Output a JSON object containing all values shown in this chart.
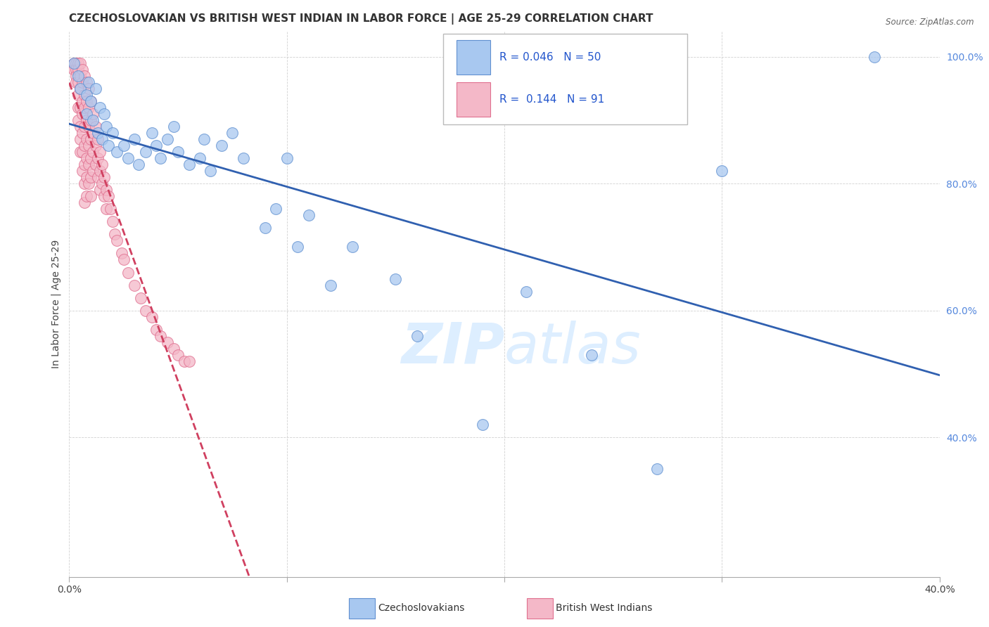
{
  "title": "CZECHOSLOVAKIAN VS BRITISH WEST INDIAN IN LABOR FORCE | AGE 25-29 CORRELATION CHART",
  "source": "Source: ZipAtlas.com",
  "ylabel": "In Labor Force | Age 25-29",
  "xlim": [
    0.0,
    0.4
  ],
  "ylim": [
    0.18,
    1.04
  ],
  "xticks": [
    0.0,
    0.1,
    0.2,
    0.3,
    0.4
  ],
  "xticklabels": [
    "0.0%",
    "",
    "",
    "",
    "40.0%"
  ],
  "yticks": [
    0.4,
    0.6,
    0.8,
    1.0
  ],
  "yticklabels": [
    "40.0%",
    "60.0%",
    "80.0%",
    "100.0%"
  ],
  "legend_blue_label": "Czechoslovakians",
  "legend_pink_label": "British West Indians",
  "R_blue": 0.046,
  "N_blue": 50,
  "R_pink": 0.144,
  "N_pink": 91,
  "blue_color": "#a8c8f0",
  "pink_color": "#f4b8c8",
  "blue_edge_color": "#6090d0",
  "pink_edge_color": "#e07090",
  "blue_line_color": "#3060b0",
  "pink_line_color": "#d04060",
  "watermark_color": "#ddeeff",
  "title_fontsize": 11,
  "axis_fontsize": 10,
  "tick_fontsize": 10,
  "blue_scatter": [
    [
      0.002,
      0.99
    ],
    [
      0.004,
      0.97
    ],
    [
      0.005,
      0.95
    ],
    [
      0.008,
      0.94
    ],
    [
      0.008,
      0.91
    ],
    [
      0.009,
      0.96
    ],
    [
      0.01,
      0.93
    ],
    [
      0.011,
      0.9
    ],
    [
      0.012,
      0.95
    ],
    [
      0.013,
      0.88
    ],
    [
      0.014,
      0.92
    ],
    [
      0.015,
      0.87
    ],
    [
      0.016,
      0.91
    ],
    [
      0.017,
      0.89
    ],
    [
      0.018,
      0.86
    ],
    [
      0.02,
      0.88
    ],
    [
      0.022,
      0.85
    ],
    [
      0.025,
      0.86
    ],
    [
      0.027,
      0.84
    ],
    [
      0.03,
      0.87
    ],
    [
      0.032,
      0.83
    ],
    [
      0.035,
      0.85
    ],
    [
      0.038,
      0.88
    ],
    [
      0.04,
      0.86
    ],
    [
      0.042,
      0.84
    ],
    [
      0.045,
      0.87
    ],
    [
      0.048,
      0.89
    ],
    [
      0.05,
      0.85
    ],
    [
      0.055,
      0.83
    ],
    [
      0.06,
      0.84
    ],
    [
      0.062,
      0.87
    ],
    [
      0.065,
      0.82
    ],
    [
      0.07,
      0.86
    ],
    [
      0.075,
      0.88
    ],
    [
      0.08,
      0.84
    ],
    [
      0.09,
      0.73
    ],
    [
      0.095,
      0.76
    ],
    [
      0.1,
      0.84
    ],
    [
      0.105,
      0.7
    ],
    [
      0.11,
      0.75
    ],
    [
      0.12,
      0.64
    ],
    [
      0.13,
      0.7
    ],
    [
      0.15,
      0.65
    ],
    [
      0.16,
      0.56
    ],
    [
      0.19,
      0.42
    ],
    [
      0.21,
      0.63
    ],
    [
      0.24,
      0.53
    ],
    [
      0.27,
      0.35
    ],
    [
      0.3,
      0.82
    ],
    [
      0.37,
      1.0
    ]
  ],
  "pink_scatter": [
    [
      0.002,
      0.99
    ],
    [
      0.002,
      0.98
    ],
    [
      0.003,
      0.99
    ],
    [
      0.003,
      0.98
    ],
    [
      0.003,
      0.97
    ],
    [
      0.003,
      0.96
    ],
    [
      0.004,
      0.99
    ],
    [
      0.004,
      0.98
    ],
    [
      0.004,
      0.96
    ],
    [
      0.004,
      0.94
    ],
    [
      0.004,
      0.92
    ],
    [
      0.004,
      0.9
    ],
    [
      0.005,
      0.99
    ],
    [
      0.005,
      0.97
    ],
    [
      0.005,
      0.95
    ],
    [
      0.005,
      0.92
    ],
    [
      0.005,
      0.89
    ],
    [
      0.005,
      0.87
    ],
    [
      0.005,
      0.85
    ],
    [
      0.006,
      0.98
    ],
    [
      0.006,
      0.96
    ],
    [
      0.006,
      0.93
    ],
    [
      0.006,
      0.91
    ],
    [
      0.006,
      0.88
    ],
    [
      0.006,
      0.85
    ],
    [
      0.006,
      0.82
    ],
    [
      0.007,
      0.97
    ],
    [
      0.007,
      0.94
    ],
    [
      0.007,
      0.92
    ],
    [
      0.007,
      0.89
    ],
    [
      0.007,
      0.86
    ],
    [
      0.007,
      0.83
    ],
    [
      0.007,
      0.8
    ],
    [
      0.007,
      0.77
    ],
    [
      0.008,
      0.96
    ],
    [
      0.008,
      0.93
    ],
    [
      0.008,
      0.9
    ],
    [
      0.008,
      0.87
    ],
    [
      0.008,
      0.84
    ],
    [
      0.008,
      0.81
    ],
    [
      0.008,
      0.78
    ],
    [
      0.009,
      0.95
    ],
    [
      0.009,
      0.92
    ],
    [
      0.009,
      0.89
    ],
    [
      0.009,
      0.86
    ],
    [
      0.009,
      0.83
    ],
    [
      0.009,
      0.8
    ],
    [
      0.01,
      0.93
    ],
    [
      0.01,
      0.9
    ],
    [
      0.01,
      0.87
    ],
    [
      0.01,
      0.84
    ],
    [
      0.01,
      0.81
    ],
    [
      0.01,
      0.78
    ],
    [
      0.011,
      0.91
    ],
    [
      0.011,
      0.88
    ],
    [
      0.011,
      0.85
    ],
    [
      0.011,
      0.82
    ],
    [
      0.012,
      0.89
    ],
    [
      0.012,
      0.86
    ],
    [
      0.012,
      0.83
    ],
    [
      0.013,
      0.87
    ],
    [
      0.013,
      0.84
    ],
    [
      0.013,
      0.81
    ],
    [
      0.014,
      0.85
    ],
    [
      0.014,
      0.82
    ],
    [
      0.014,
      0.79
    ],
    [
      0.015,
      0.83
    ],
    [
      0.015,
      0.8
    ],
    [
      0.016,
      0.81
    ],
    [
      0.016,
      0.78
    ],
    [
      0.017,
      0.79
    ],
    [
      0.017,
      0.76
    ],
    [
      0.018,
      0.78
    ],
    [
      0.019,
      0.76
    ],
    [
      0.02,
      0.74
    ],
    [
      0.021,
      0.72
    ],
    [
      0.022,
      0.71
    ],
    [
      0.024,
      0.69
    ],
    [
      0.025,
      0.68
    ],
    [
      0.027,
      0.66
    ],
    [
      0.03,
      0.64
    ],
    [
      0.033,
      0.62
    ],
    [
      0.035,
      0.6
    ],
    [
      0.038,
      0.59
    ],
    [
      0.04,
      0.57
    ],
    [
      0.042,
      0.56
    ],
    [
      0.045,
      0.55
    ],
    [
      0.048,
      0.54
    ],
    [
      0.05,
      0.53
    ],
    [
      0.053,
      0.52
    ],
    [
      0.055,
      0.52
    ]
  ]
}
